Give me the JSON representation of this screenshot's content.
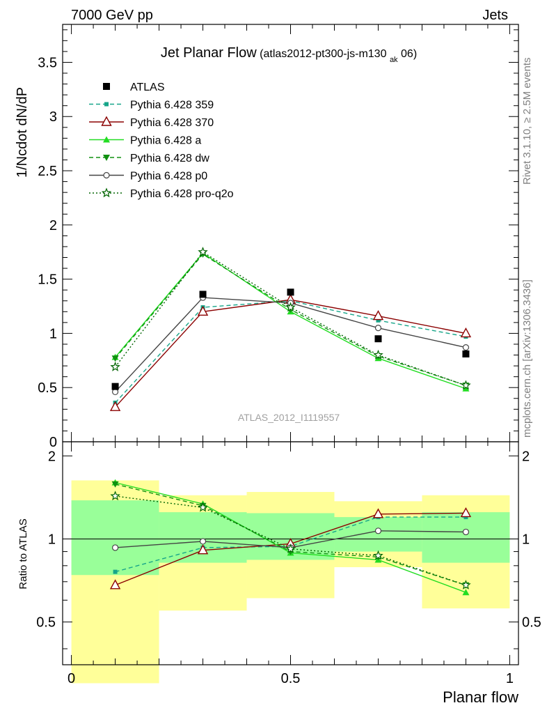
{
  "header": {
    "left": "7000 GeV pp",
    "right": "Jets"
  },
  "side_labels": {
    "rivet": "Rivet 3.1.10, ≥ 2.5M events",
    "mcplots": "mcplots.cern.ch [arXiv:1306.3436]"
  },
  "chart_data": {
    "type": "line",
    "title": "Jet Planar Flow",
    "subtitle_main": "(atlas2012-pt300-js-m130",
    "subtitle_sub": "ak",
    "subtitle_end": "06)",
    "watermark": "ATLAS_2012_I1119557",
    "xlabel": "Planar flow",
    "ylabel": "1/Ncdot dN/dP",
    "ratio_ylabel": "Ratio to ATLAS",
    "xlim": [
      -0.02,
      1.02
    ],
    "ylim": [
      0,
      3.85
    ],
    "ratio_ylim": [
      0.35,
      2.25
    ],
    "x_ticks": [
      0,
      0.5,
      1
    ],
    "x_tick_labels": [
      "0",
      "0.5",
      "1"
    ],
    "y_ticks": [
      0,
      0.5,
      1,
      1.5,
      2,
      2.5,
      3,
      3.5
    ],
    "y_tick_labels": [
      "0",
      "0.5",
      "1",
      "1.5",
      "2",
      "2.5",
      "3",
      "3.5"
    ],
    "ratio_ticks": [
      0.5,
      1,
      2
    ],
    "ratio_tick_labels": [
      "0.5",
      "1",
      "2"
    ],
    "legend_position": "top-left",
    "x": [
      0.1,
      0.3,
      0.5,
      0.7,
      0.9
    ],
    "bin_edges": [
      0,
      0.2,
      0.4,
      0.6,
      0.8,
      1.0
    ],
    "data": {
      "name": "ATLAS",
      "values": [
        0.51,
        1.36,
        1.38,
        0.95,
        0.81
      ],
      "color": "#000000"
    },
    "series": [
      {
        "name": "Pythia 6.428 359",
        "values": [
          0.36,
          1.24,
          1.3,
          1.12,
          0.97
        ],
        "ratio": [
          0.76,
          0.93,
          0.94,
          1.2,
          1.2
        ],
        "color": "#17a589",
        "dash": "6,4",
        "marker": "square-filled"
      },
      {
        "name": "Pythia 6.428 370",
        "values": [
          0.32,
          1.2,
          1.31,
          1.16,
          1.0
        ],
        "ratio": [
          0.68,
          0.91,
          0.96,
          1.23,
          1.24
        ],
        "color": "#8b0000",
        "dash": "",
        "marker": "triangle-open"
      },
      {
        "name": "Pythia 6.428 a",
        "values": [
          0.78,
          1.74,
          1.2,
          0.77,
          0.49
        ],
        "ratio": [
          1.6,
          1.34,
          0.89,
          0.84,
          0.64
        ],
        "color": "#22dd22",
        "dash": "",
        "marker": "triangle-filled"
      },
      {
        "name": "Pythia 6.428 dw",
        "values": [
          0.77,
          1.73,
          1.22,
          0.79,
          0.52
        ],
        "ratio": [
          1.58,
          1.32,
          0.9,
          0.86,
          0.68
        ],
        "color": "#109010",
        "dash": "6,4",
        "marker": "triangle-down-filled"
      },
      {
        "name": "Pythia 6.428 p0",
        "values": [
          0.46,
          1.33,
          1.28,
          1.05,
          0.87
        ],
        "ratio": [
          0.93,
          0.98,
          0.93,
          1.07,
          1.06
        ],
        "color": "#444444",
        "dash": "",
        "marker": "circle-open"
      },
      {
        "name": "Pythia 6.428 pro-q2o",
        "values": [
          0.69,
          1.75,
          1.24,
          0.8,
          0.52
        ],
        "ratio": [
          1.43,
          1.3,
          0.92,
          0.87,
          0.68
        ],
        "color": "#006400",
        "dash": "2,3",
        "marker": "star"
      }
    ],
    "uncertainty_bands": {
      "inner_color": "#99ff99",
      "outer_color": "#ffff99",
      "inner": [
        [
          0.74,
          1.38
        ],
        [
          0.82,
          1.25
        ],
        [
          0.84,
          1.24
        ],
        [
          0.9,
          1.2
        ],
        [
          0.82,
          1.25
        ]
      ],
      "outer": [
        [
          0.3,
          1.63
        ],
        [
          0.55,
          1.44
        ],
        [
          0.61,
          1.48
        ],
        [
          0.79,
          1.37
        ],
        [
          0.56,
          1.44
        ]
      ]
    }
  }
}
